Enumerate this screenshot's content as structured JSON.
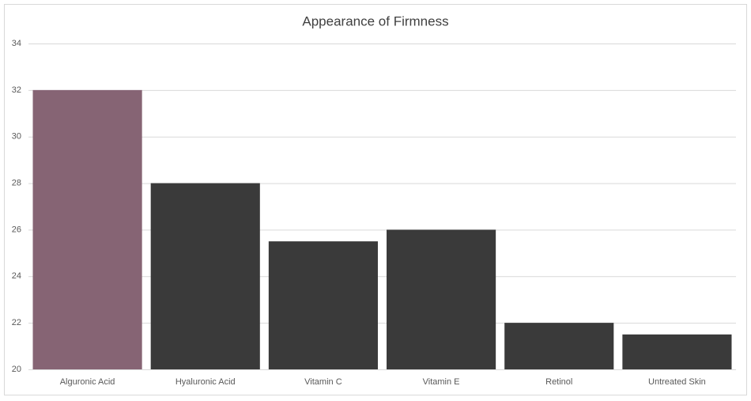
{
  "chart_data": {
    "type": "bar",
    "title": "Appearance of Firmness",
    "categories": [
      "Alguronic Acid",
      "Hyaluronic Acid",
      "Vitamin C",
      "Vitamin E",
      "Retinol",
      "Untreated Skin"
    ],
    "values": [
      32,
      28,
      25.5,
      26,
      22,
      21.5
    ],
    "colors": [
      "#866474",
      "#3a3a3a",
      "#3a3a3a",
      "#3a3a3a",
      "#3a3a3a",
      "#3a3a3a"
    ],
    "ylim": [
      20,
      34
    ],
    "yticks": [
      20,
      22,
      24,
      26,
      28,
      30,
      32,
      34
    ],
    "grid": true
  }
}
